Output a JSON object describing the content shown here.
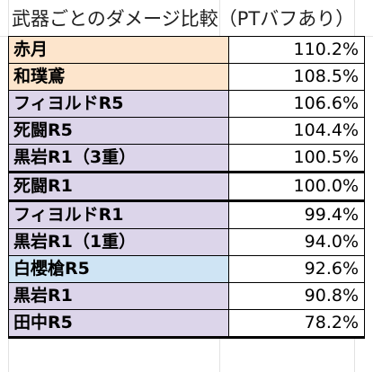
{
  "sheet": {
    "title": "武器ごとのダメージ比較（PTバフあり）"
  },
  "colors": {
    "peach": "#fde5cc",
    "lavender": "#dcd5ea",
    "lightblue": "#cfe4f4"
  },
  "rows": [
    {
      "name": "赤月",
      "value": "110.2%",
      "color": "peach"
    },
    {
      "name": "和璞鳶",
      "value": "108.5%",
      "color": "peach"
    },
    {
      "name": "フィヨルドR5",
      "value": "106.6%",
      "color": "lavender"
    },
    {
      "name": "死闘R5",
      "value": "104.4%",
      "color": "lavender"
    },
    {
      "name": "黒岩R1（3重）",
      "value": "100.5%",
      "color": "lavender"
    },
    {
      "name": "死闘R1",
      "value": "100.0%",
      "color": "lavender"
    },
    {
      "name": "フィヨルドR1",
      "value": "99.4%",
      "color": "lavender"
    },
    {
      "name": "黒岩R1（1重）",
      "value": "94.0%",
      "color": "lavender"
    },
    {
      "name": "白櫻槍R5",
      "value": "92.6%",
      "color": "lightblue"
    },
    {
      "name": "黒岩R1",
      "value": "90.8%",
      "color": "lavender"
    },
    {
      "name": "田中R5",
      "value": "78.2%",
      "color": "lavender"
    }
  ]
}
